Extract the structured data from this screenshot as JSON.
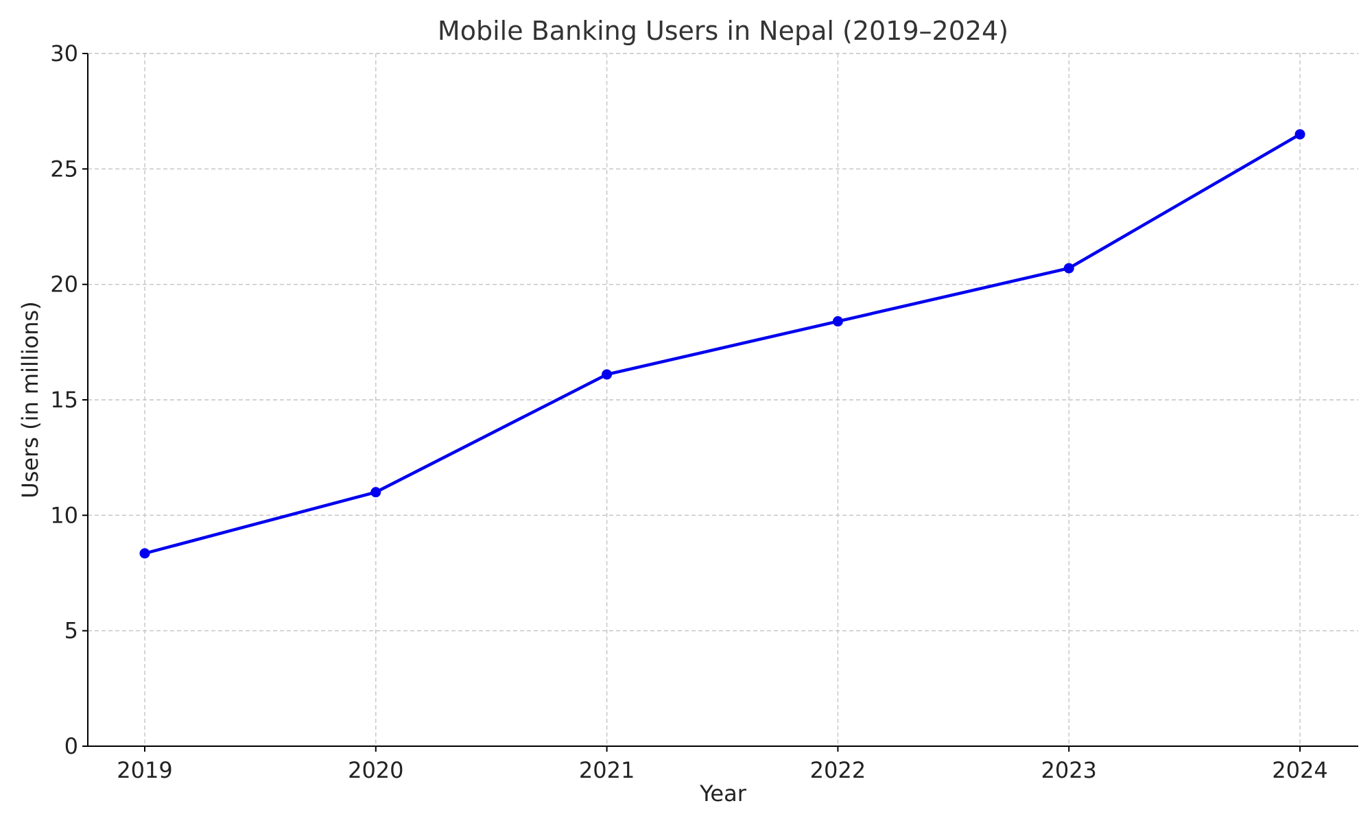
{
  "chart_data": {
    "type": "line",
    "title": "Mobile Banking Users in Nepal (2019–2024)",
    "xlabel": "Year",
    "ylabel": "Users (in millions)",
    "categories": [
      "2019",
      "2020",
      "2021",
      "2022",
      "2023",
      "2024"
    ],
    "series": [
      {
        "values": [
          8.35,
          11.0,
          16.1,
          18.4,
          20.7,
          26.5
        ],
        "color": "#0000ee",
        "marker": "circle"
      }
    ],
    "ylim": [
      0,
      30
    ],
    "yticks": [
      "0",
      "5",
      "10",
      "15",
      "20",
      "25",
      "30"
    ],
    "grid": true,
    "legend": "none"
  }
}
